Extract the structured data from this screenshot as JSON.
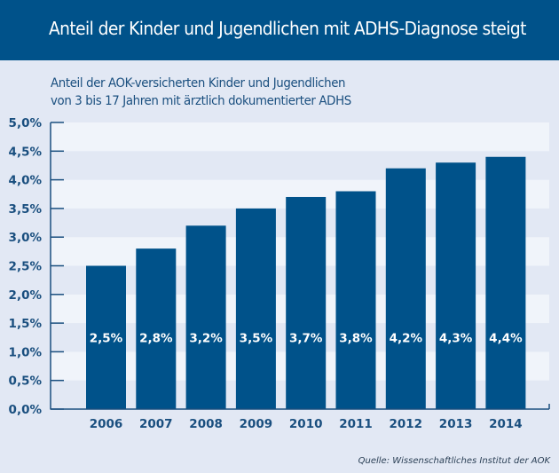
{
  "header": {
    "title": "Anteil der Kinder und Jugendlichen mit ADHS-Diagnose steigt"
  },
  "subtitle": {
    "line1": "Anteil der AOK-versicherten Kinder und Jugendlichen",
    "line2": "von 3 bis 17 Jahren mit ärztlich dokumentierter ADHS"
  },
  "source": "Quelle: Wissenschaftliches Institut der AOK",
  "colors": {
    "header_bg": "#00528a",
    "page_bg": "#e2e8f4",
    "band_light": "#f0f4fa",
    "band_dark": "#e2e8f4",
    "bar": "#00528a",
    "axis": "#1a4f7f",
    "text": "#1a4f7f"
  },
  "chart_data": {
    "type": "bar",
    "title": "Anteil der Kinder und Jugendlichen mit ADHS-Diagnose steigt",
    "subtitle": "Anteil der AOK-versicherten Kinder und Jugendlichen von 3 bis 17 Jahren mit ärztlich dokumentierter ADHS",
    "xlabel": "",
    "ylabel": "",
    "categories": [
      "2006",
      "2007",
      "2008",
      "2009",
      "2010",
      "2011",
      "2012",
      "2013",
      "2014"
    ],
    "values": [
      2.5,
      2.8,
      3.2,
      3.5,
      3.7,
      3.8,
      4.2,
      4.3,
      4.4
    ],
    "value_labels": [
      "2,5%",
      "2,8%",
      "3,2%",
      "3,5%",
      "3,7%",
      "3,8%",
      "4,2%",
      "4,3%",
      "4,4%"
    ],
    "ylim": [
      0,
      5.0
    ],
    "yticks": [
      0,
      0.5,
      1.0,
      1.5,
      2.0,
      2.5,
      3.0,
      3.5,
      4.0,
      4.5,
      5.0
    ],
    "ytick_labels": [
      "0,0%",
      "0,5%",
      "1,0%",
      "1,5%",
      "2,0%",
      "2,5%",
      "3,0%",
      "3,5%",
      "4,0%",
      "4,5%",
      "5,0%"
    ],
    "grid": "alternating horizontal bands",
    "legend": "none",
    "source": "Quelle: Wissenschaftliches Institut der AOK"
  }
}
